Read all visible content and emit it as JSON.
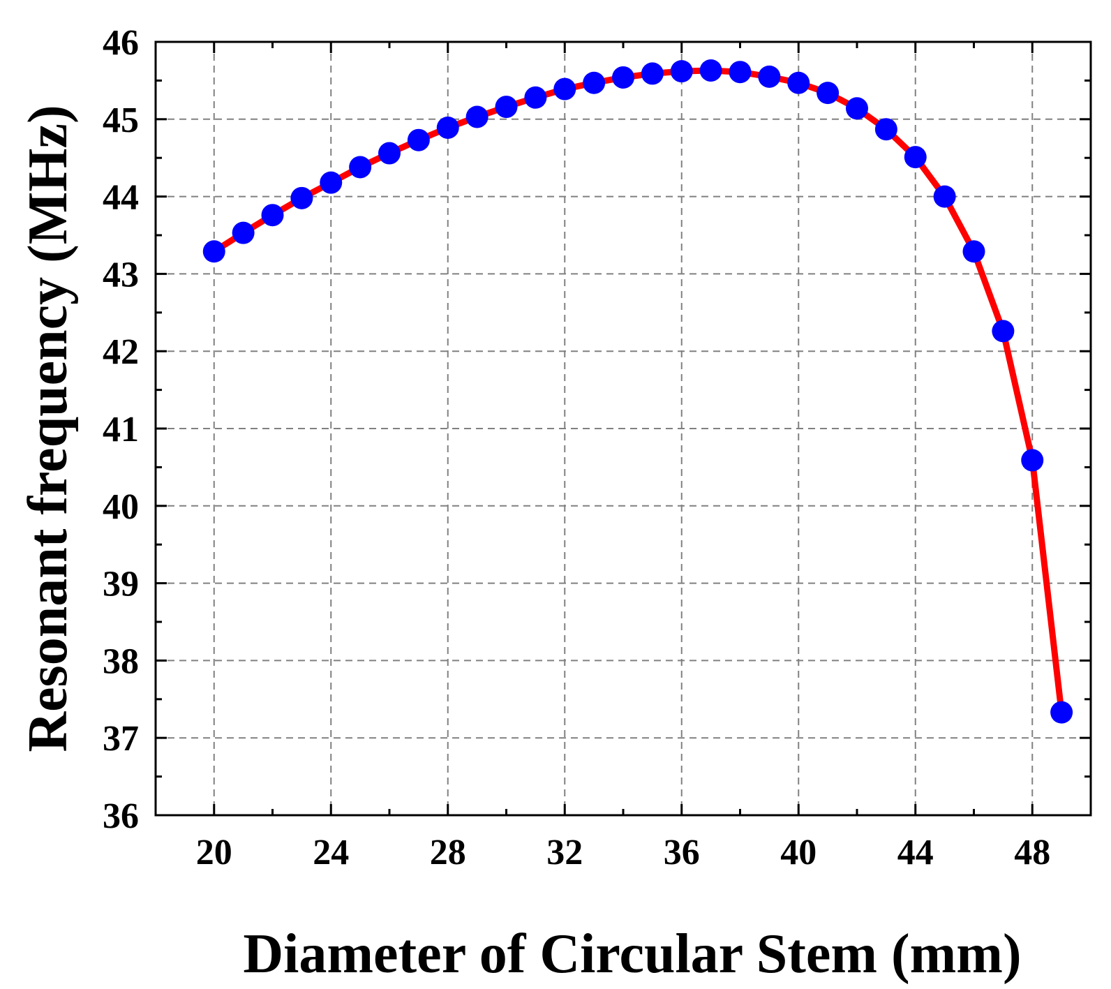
{
  "chart_data": {
    "type": "line",
    "title": "",
    "xlabel": "Diameter of Circular Stem (mm)",
    "ylabel": "Resonant frequency (MHz)",
    "xlim": [
      18,
      50
    ],
    "ylim": [
      36,
      46
    ],
    "xticks": [
      20,
      24,
      28,
      32,
      36,
      40,
      44,
      48
    ],
    "yticks": [
      36,
      37,
      38,
      39,
      40,
      41,
      42,
      43,
      44,
      45,
      46
    ],
    "grid": true,
    "legend": "none",
    "series": [
      {
        "name": "Resonant frequency",
        "line_color": "#ff0000",
        "marker_color": "#0000ff",
        "marker": "circle",
        "x": [
          20,
          21,
          22,
          23,
          24,
          25,
          26,
          27,
          28,
          29,
          30,
          31,
          32,
          33,
          34,
          35,
          36,
          37,
          38,
          39,
          40,
          41,
          42,
          43,
          44,
          45,
          46,
          47,
          48,
          49
        ],
        "y": [
          43.29,
          43.53,
          43.76,
          43.98,
          44.18,
          44.38,
          44.56,
          44.73,
          44.89,
          45.03,
          45.16,
          45.28,
          45.39,
          45.47,
          45.54,
          45.59,
          45.62,
          45.63,
          45.61,
          45.55,
          45.47,
          45.34,
          45.14,
          44.87,
          44.51,
          44.0,
          43.29,
          42.26,
          40.59,
          37.33
        ]
      }
    ]
  }
}
